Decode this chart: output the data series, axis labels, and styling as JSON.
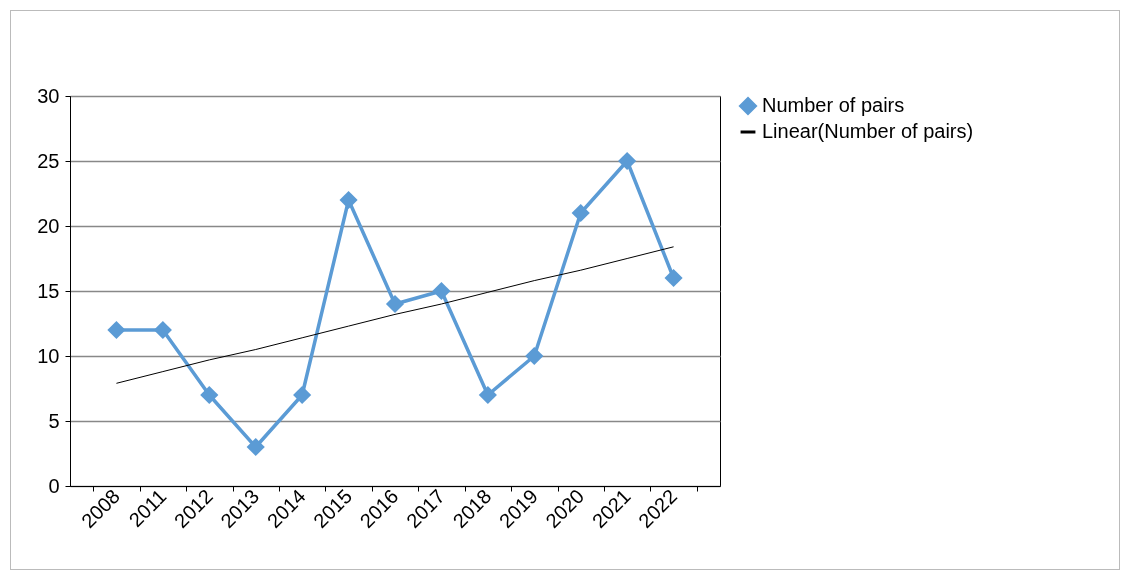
{
  "chart_data": {
    "type": "line",
    "categories": [
      "2008",
      "2011",
      "2012",
      "2013",
      "2014",
      "2015",
      "2016",
      "2017",
      "2018",
      "2019",
      "2020",
      "2021",
      "2022"
    ],
    "series": [
      {
        "name": "Number of pairs",
        "color": "#5b9bd5",
        "marker": "diamond",
        "values": [
          12,
          12,
          7,
          3,
          7,
          22,
          14,
          15,
          7,
          10,
          21,
          25,
          16
        ]
      },
      {
        "name": "Linear(Number of pairs)",
        "color": "#000000",
        "type": "line",
        "marker": "none",
        "values": [
          7.9,
          8.8,
          9.7,
          10.5,
          11.4,
          12.3,
          13.2,
          14.0,
          14.9,
          15.8,
          16.6,
          17.5,
          18.4
        ]
      }
    ],
    "ylim": [
      0,
      30
    ],
    "yticks": [
      0,
      5,
      10,
      15,
      20,
      25,
      30
    ],
    "grid": "y",
    "legend": "right"
  }
}
